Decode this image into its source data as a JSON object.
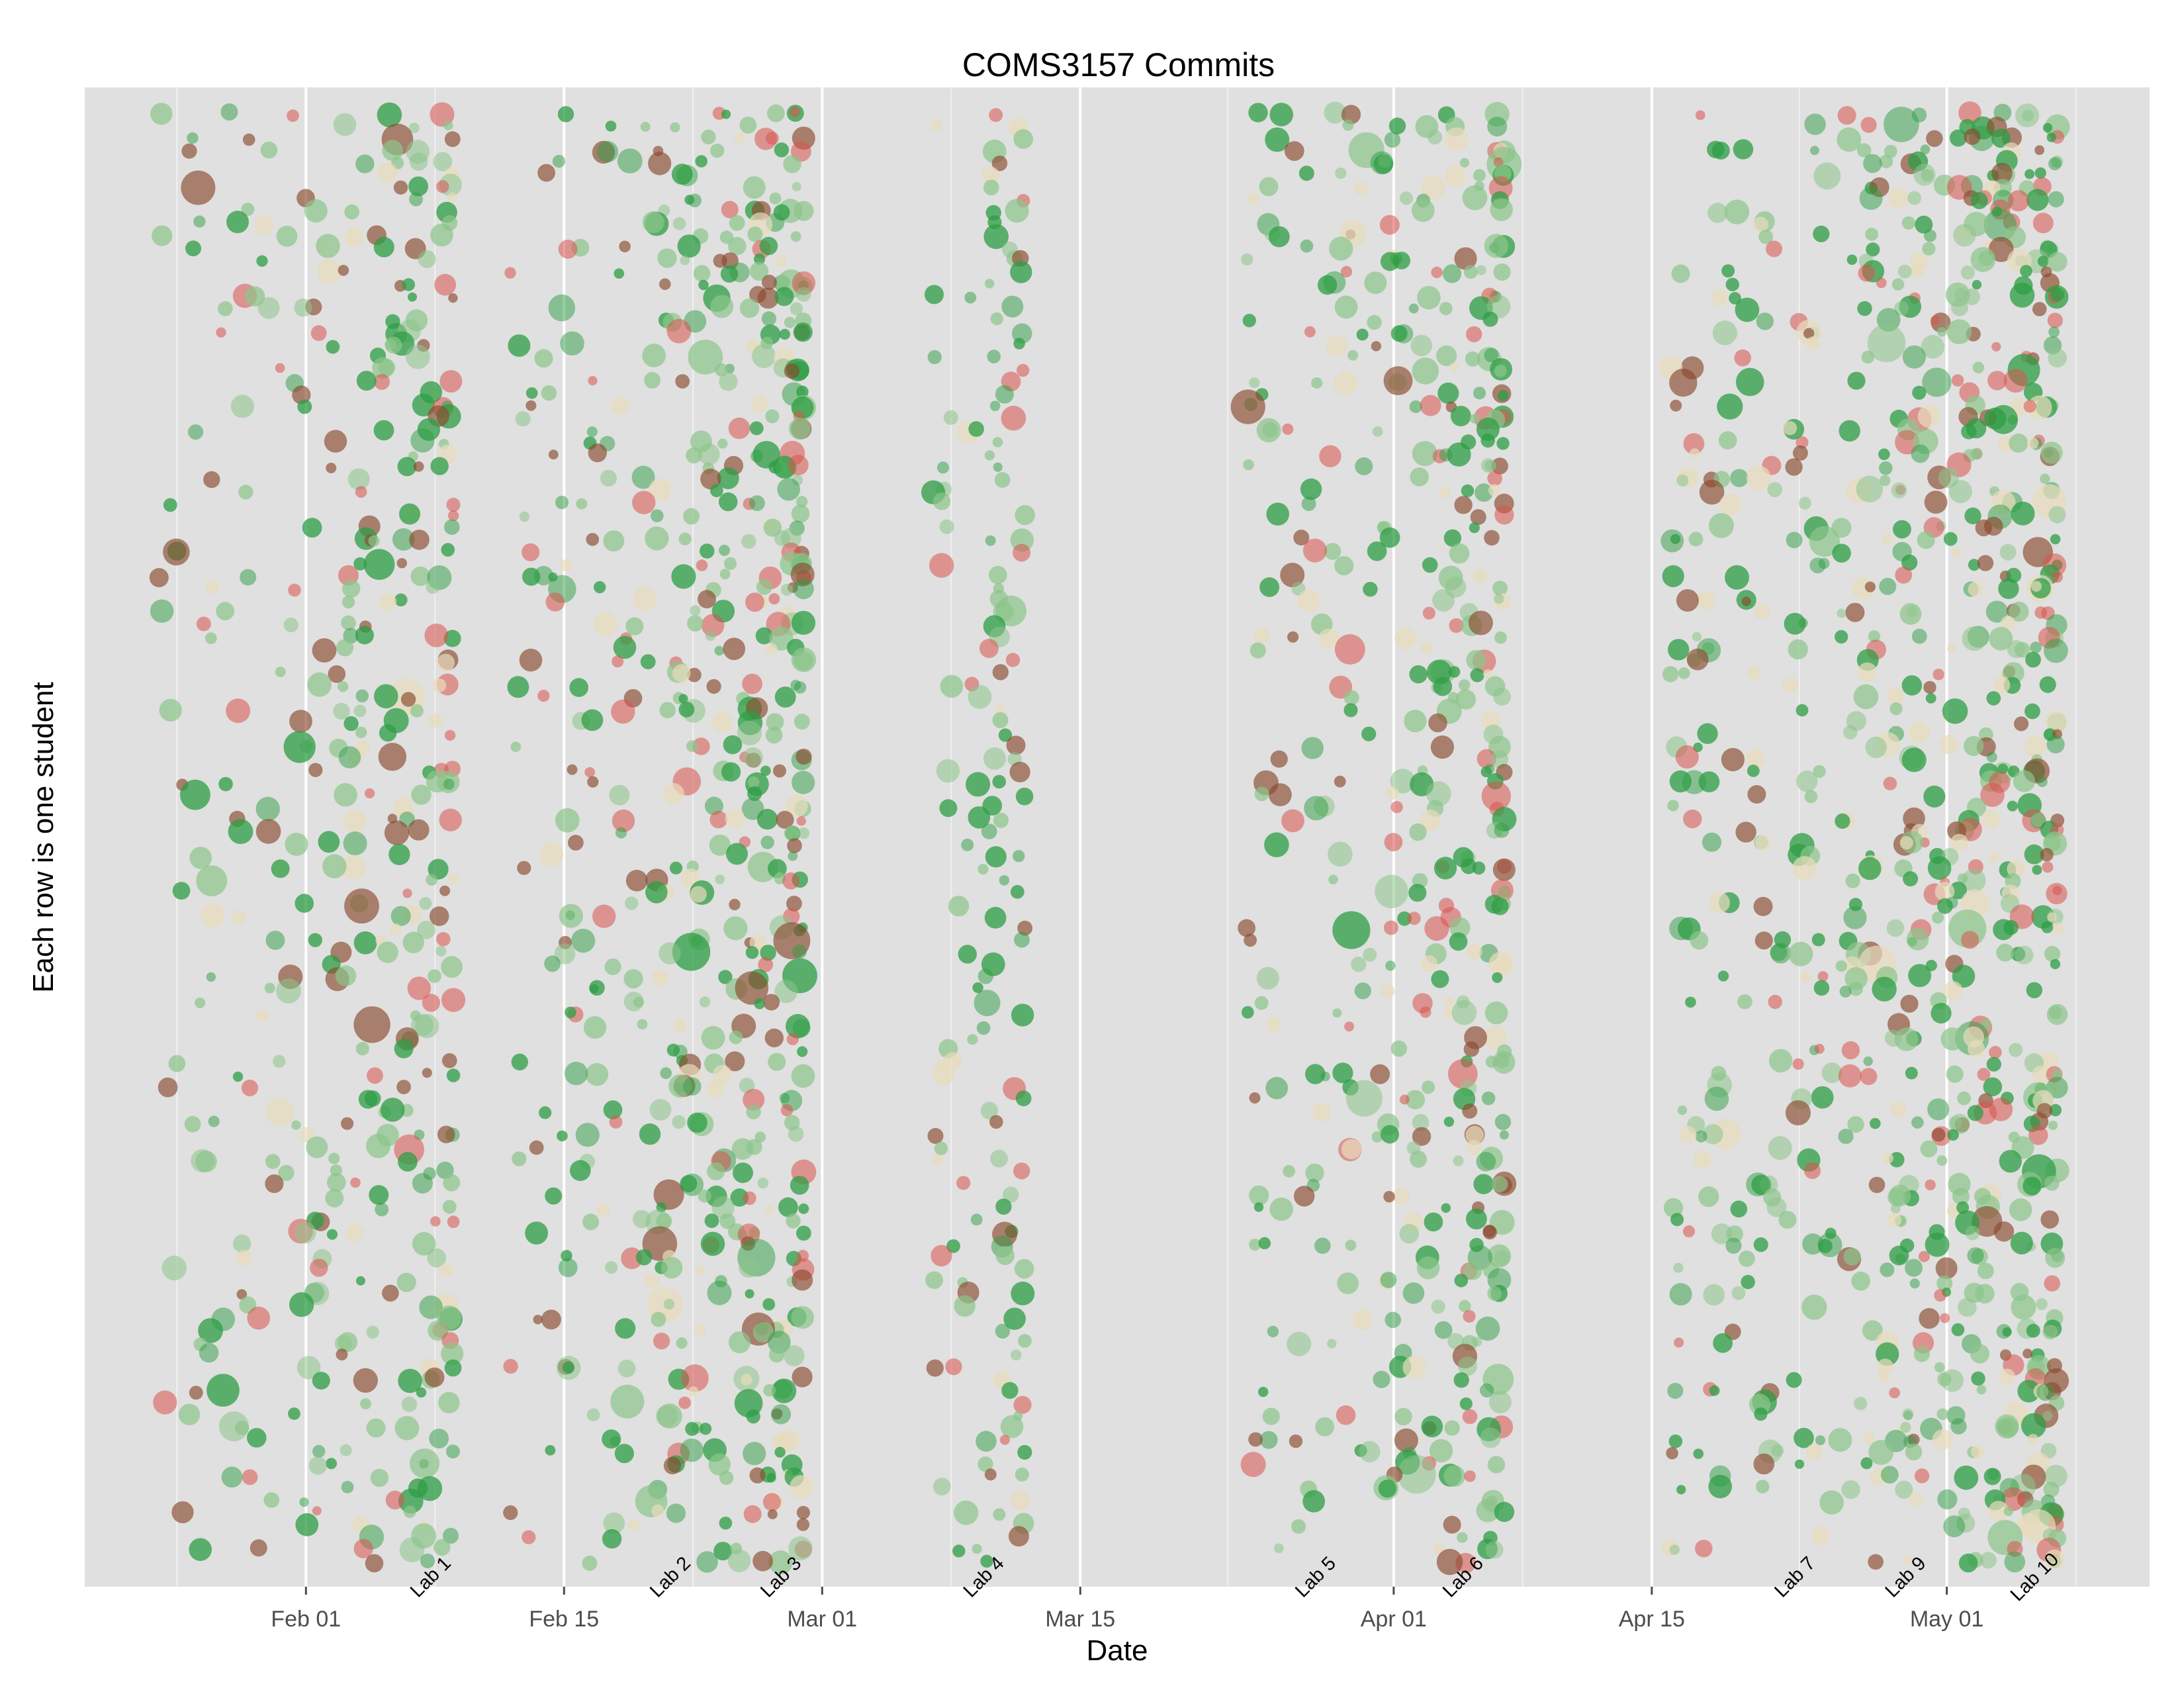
{
  "chart_data": {
    "type": "scatter",
    "title": "COMS3157 Commits",
    "xlabel": "Date",
    "ylabel": "Each row is one student",
    "x_axis": {
      "ticks": [
        "2013-02-01",
        "2013-02-15",
        "2013-03-01",
        "2013-03-15",
        "2013-04-01",
        "2013-04-15",
        "2013-05-01"
      ],
      "tick_labels": [
        "Feb 01",
        "Feb 15",
        "Mar 01",
        "Mar 15",
        "Apr 01",
        "Apr 15",
        "May 01"
      ],
      "minor_ticks": [
        "2013-01-25",
        "2013-02-08",
        "2013-02-22",
        "2013-03-08",
        "2013-03-23",
        "2013-04-08",
        "2013-04-23",
        "2013-05-08"
      ],
      "range": [
        "2013-01-20",
        "2013-05-12"
      ]
    },
    "y_axis": {
      "ticks": [],
      "note_rows": 120
    },
    "grid": true,
    "background": "#e0e0e0",
    "lab_deadlines": [
      {
        "label": "Lab 1",
        "date": "2013-02-08"
      },
      {
        "label": "Lab 2",
        "date": "2013-02-21"
      },
      {
        "label": "Lab 3",
        "date": "2013-02-27"
      },
      {
        "label": "Lab 4",
        "date": "2013-03-10"
      },
      {
        "label": "Lab 5",
        "date": "2013-03-28"
      },
      {
        "label": "Lab 6",
        "date": "2013-04-05"
      },
      {
        "label": "Lab 7",
        "date": "2013-04-23"
      },
      {
        "label": "Lab 9",
        "date": "2013-04-29"
      },
      {
        "label": "Lab 10",
        "date": "2013-05-06"
      }
    ],
    "activity_clusters": [
      {
        "from": "2013-01-24",
        "to": "2013-02-09",
        "density": 0.55
      },
      {
        "from": "2013-02-12",
        "to": "2013-02-28",
        "density": 0.75
      },
      {
        "from": "2013-03-07",
        "to": "2013-03-12",
        "density": 0.6
      },
      {
        "from": "2013-03-24",
        "to": "2013-04-07",
        "density": 0.7
      },
      {
        "from": "2013-04-16",
        "to": "2013-05-07",
        "density": 0.8
      }
    ],
    "colors": {
      "green": "#2e9e44",
      "light_green": "#8cc48a",
      "pale": "#e8dcbc",
      "red": "#d9534f",
      "brown": "#8b4a2e"
    }
  }
}
